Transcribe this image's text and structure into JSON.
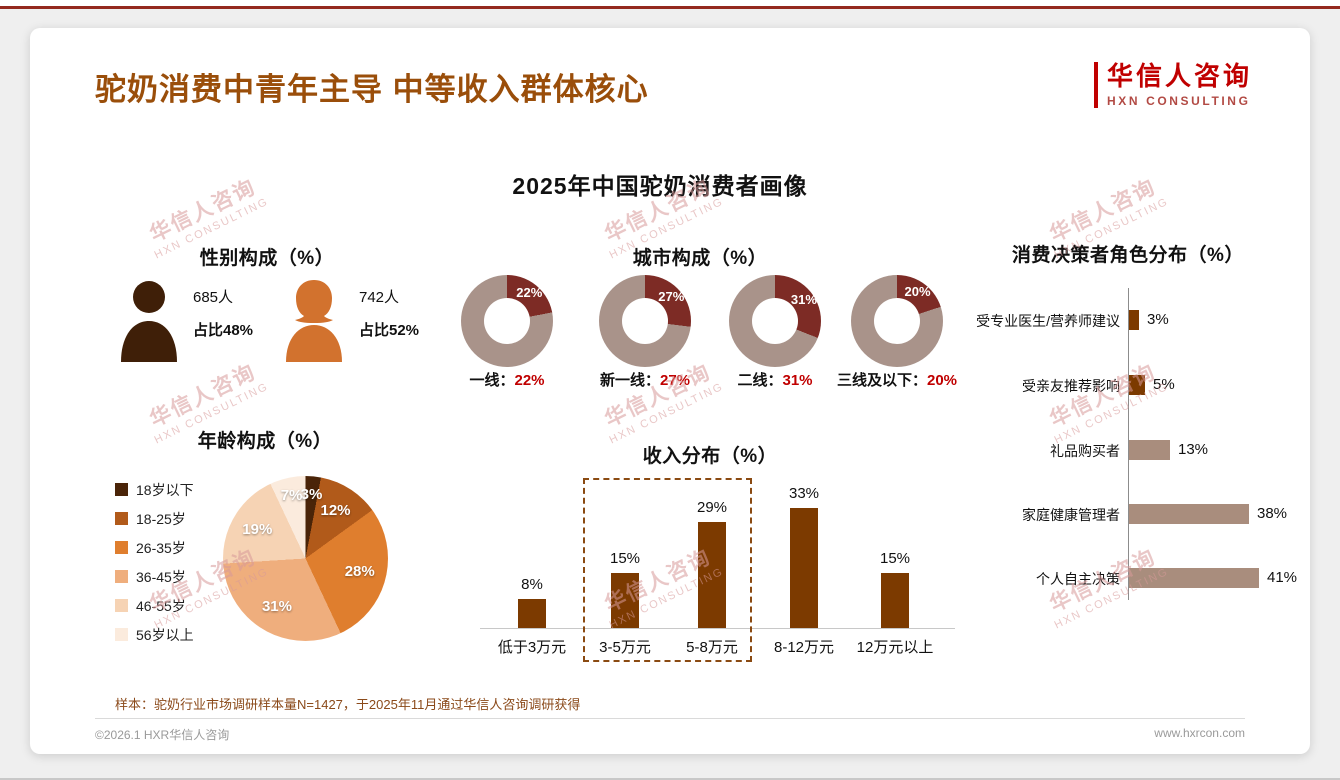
{
  "header": {
    "title": "驼奶消费中青年主导 中等收入群体核心",
    "logo_name": "华信人咨询",
    "logo_sub": "HXN CONSULTING"
  },
  "main": {
    "chart_title": "2025年中国驼奶消费者画像",
    "footnote": "样本：驼奶行业市场调研样本量N=1427，于2025年11月通过华信人咨询调研获得"
  },
  "footer": {
    "left": "©2026.1 HXR华信人咨询",
    "right": "www.hxrcon.com"
  },
  "watermark": {
    "line1": "华信人咨询",
    "line2": "HXN CONSULTING"
  },
  "colors": {
    "accent_red": "#C00000",
    "title_brown": "#9A4E0A",
    "donut_highlight": "#7D2B25",
    "donut_rest": "#A9938A",
    "bar_dark": "#7C3A00",
    "bar_tan": "#A98D7D"
  },
  "chart_data": [
    {
      "id": "gender",
      "type": "pictogram",
      "title": "性别构成（%）",
      "series": [
        {
          "icon": "male",
          "count": "685人",
          "share": "占比48%",
          "color": "#3F1F08"
        },
        {
          "icon": "female",
          "count": "742人",
          "share": "占比52%",
          "color": "#D2722E"
        }
      ]
    },
    {
      "id": "city",
      "type": "donut",
      "title": "城市构成（%）",
      "categories": [
        "一线",
        "新一线",
        "二线",
        "三线及以下"
      ],
      "values": [
        22,
        27,
        31,
        20
      ],
      "separator": "：",
      "highlight_color": "#7D2B25",
      "rest_color": "#A9938A"
    },
    {
      "id": "age",
      "type": "pie",
      "title": "年龄构成（%）",
      "categories": [
        "18岁以下",
        "18-25岁",
        "26-35岁",
        "36-45岁",
        "46-55岁",
        "56岁以上"
      ],
      "values": [
        3,
        12,
        28,
        31,
        19,
        7
      ],
      "colors": [
        "#4A2408",
        "#B15A1A",
        "#DF7E2E",
        "#EFAE7D",
        "#F6D3B4",
        "#FBEBDD"
      ],
      "legend_position": "left"
    },
    {
      "id": "income",
      "type": "bar",
      "title": "收入分布（%）",
      "categories": [
        "低于3万元",
        "3-5万元",
        "5-8万元",
        "8-12万元",
        "12万元以上"
      ],
      "values": [
        8,
        15,
        29,
        33,
        15
      ],
      "bar_color": "#7C3A00",
      "highlight_range": [
        "3-5万元",
        "5-8万元"
      ],
      "ylim": [
        0,
        35
      ]
    },
    {
      "id": "decision",
      "type": "bar-horizontal",
      "title": "消费决策者角色分布（%）",
      "categories": [
        "受专业医生/营养师建议",
        "受亲友推荐影响",
        "礼品购买者",
        "家庭健康管理者",
        "个人自主决策"
      ],
      "values": [
        3,
        5,
        13,
        38,
        41
      ],
      "bar_colors": [
        "#7C3A00",
        "#7C3A00",
        "#A98D7D",
        "#A98D7D",
        "#A98D7D"
      ]
    }
  ]
}
